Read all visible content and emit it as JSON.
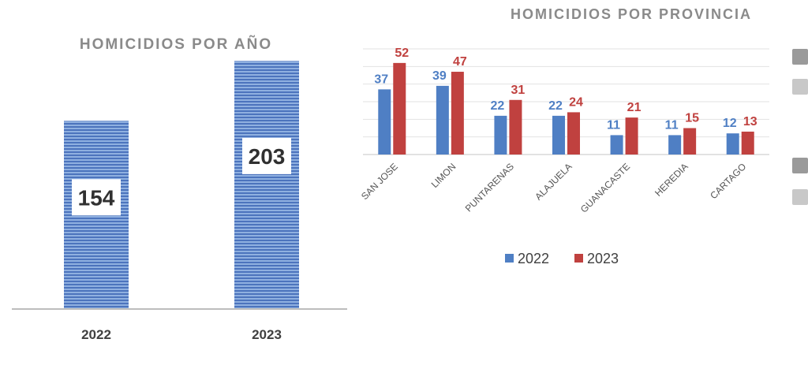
{
  "chart_data": [
    {
      "type": "bar",
      "title": "HOMICIDIOS POR AÑO",
      "categories": [
        "2022",
        "2023"
      ],
      "values": [
        154,
        203
      ],
      "ylim": [
        0,
        240
      ],
      "grid": false,
      "legend": "none",
      "colors": {
        "bar": "#6f93cf",
        "stripe": "#4c74bd"
      }
    },
    {
      "type": "bar",
      "title": "HOMICIDIOS POR PROVINCIA",
      "categories": [
        "SAN JOSE",
        "LIMON",
        "PUNTARENAS",
        "ALAJUELA",
        "GUANACASTE",
        "HEREDIA",
        "CARTAGO"
      ],
      "series": [
        {
          "name": "2022",
          "values": [
            37,
            39,
            22,
            22,
            11,
            11,
            12
          ],
          "color": "#4f7fc4"
        },
        {
          "name": "2023",
          "values": [
            52,
            47,
            31,
            24,
            21,
            15,
            13
          ],
          "color": "#c0413f"
        }
      ],
      "ylim": [
        0,
        60
      ],
      "grid": true,
      "legend": "bottom"
    }
  ]
}
